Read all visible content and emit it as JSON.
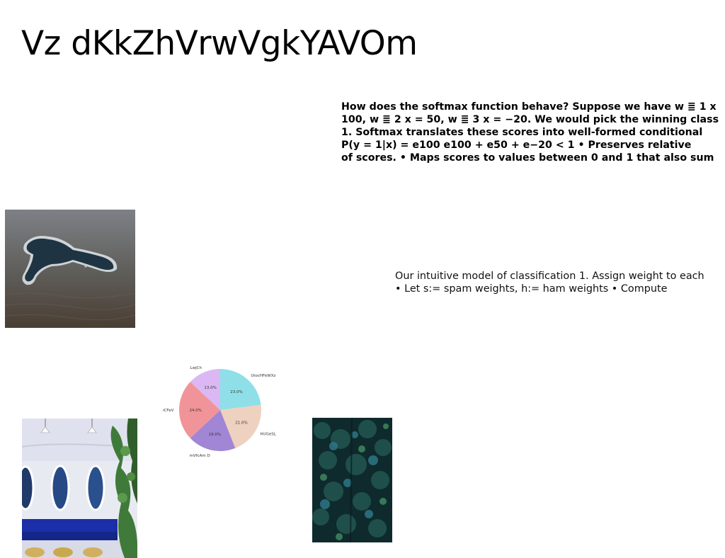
{
  "slide": {
    "title": "Vz dKkZhVrwVgkYAVOm",
    "bold_lines": [
      "How does the softmax function behave? Suppose we have w ≣ 1 x",
      "100, w ≣ 2 x = 50, w ≣ 3 x = −20. We would pick the winning class",
      "1. Softmax translates these scores into well-formed conditional",
      "P(y = 1|x) = e100 e100 + e50 + e−20 < 1 • Preserves relative",
      "of scores. • Maps scores to values between 0 and 1 that also sum"
    ],
    "light_lines": [
      "Our intuitive model of classification 1. Assign weight to each",
      "• Let s:= spam weights, h:= ham weights • Compute"
    ]
  },
  "images": {
    "island": "aerial-island-photo",
    "interior": "blue-interior-photo",
    "foliage": "dark-foliage-photo"
  },
  "chart_data": {
    "type": "pie",
    "title": "",
    "labels": [
      "UtocHFeWXz",
      "HUGeSL",
      "mVfcAm D",
      "iCFeV",
      "LwjCh"
    ],
    "values": [
      23.0,
      21.0,
      19.0,
      24.0,
      13.0
    ],
    "value_labels": [
      "23.0%",
      "21.0%",
      "19.0%",
      "24.0%",
      "13.0%"
    ],
    "colors": [
      "#8fdfe8",
      "#efd1bf",
      "#a086d4",
      "#f0949a",
      "#dbb8f4"
    ],
    "start": "top",
    "direction": "clockwise"
  }
}
